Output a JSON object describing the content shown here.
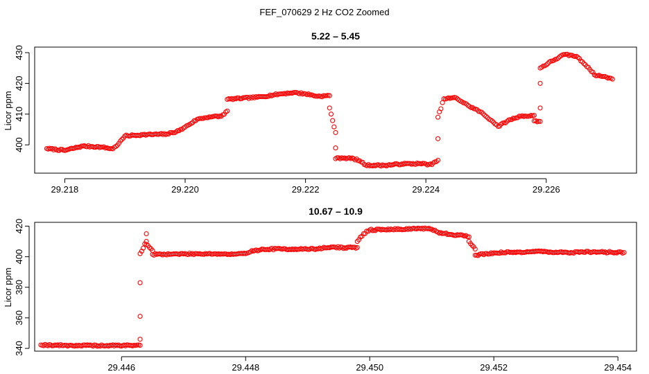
{
  "figure": {
    "title": "FEF_070629  2 Hz CO2 Zoomed",
    "point_color": "#ff0000"
  },
  "chart_data": [
    {
      "type": "scatter",
      "title": "5.22 – 5.45",
      "xlabel": "",
      "ylabel": "Licor ppm",
      "xlim": [
        29.2175,
        29.2275
      ],
      "ylim": [
        390.8,
        431.8
      ],
      "x_ticks": [
        29.218,
        29.22,
        29.222,
        29.224,
        29.226
      ],
      "x_tick_labels": [
        "29.218",
        "29.220",
        "29.222",
        "29.224",
        "29.226"
      ],
      "y_ticks": [
        400,
        410,
        420,
        430
      ],
      "y_tick_labels": [
        "400",
        "410",
        "420",
        "430"
      ],
      "grid": false,
      "x_range": [
        29.2177,
        29.2271
      ],
      "trace": [
        [
          29.2177,
          398.8
        ],
        [
          29.218,
          398.2
        ],
        [
          29.2183,
          399.6
        ],
        [
          29.2186,
          399.3
        ],
        [
          29.2188,
          398.7
        ],
        [
          29.2189,
          400.5
        ],
        [
          29.219,
          402.9
        ],
        [
          29.2193,
          403.3
        ],
        [
          29.2197,
          403.5
        ],
        [
          29.2199,
          404.6
        ],
        [
          29.22,
          405.8
        ],
        [
          29.2202,
          408.3
        ],
        [
          29.2204,
          409.1
        ],
        [
          29.2206,
          409.3
        ],
        [
          29.2207,
          411.0
        ],
        [
          29.2207,
          414.8
        ],
        [
          29.2212,
          415.5
        ],
        [
          29.2216,
          416.6
        ],
        [
          29.2218,
          417.0
        ],
        [
          29.222,
          416.6
        ],
        [
          29.2222,
          415.8
        ],
        [
          29.2224,
          416.0
        ],
        [
          29.2224,
          412.0
        ],
        [
          29.2225,
          404.0
        ],
        [
          29.2225,
          399.0
        ],
        [
          29.2225,
          395.5
        ],
        [
          29.2226,
          395.8
        ],
        [
          29.2228,
          395.5
        ],
        [
          29.2229,
          394.8
        ],
        [
          29.223,
          393.4
        ],
        [
          29.2233,
          393.3
        ],
        [
          29.2236,
          393.8
        ],
        [
          29.2239,
          393.9
        ],
        [
          29.2241,
          393.6
        ],
        [
          29.2242,
          395.0
        ],
        [
          29.2242,
          402.0
        ],
        [
          29.2242,
          409.0
        ],
        [
          29.2243,
          415.0
        ],
        [
          29.2245,
          415.3
        ],
        [
          29.2247,
          412.8
        ],
        [
          29.2249,
          410.8
        ],
        [
          29.2251,
          407.8
        ],
        [
          29.2252,
          406.0
        ],
        [
          29.2254,
          408.2
        ],
        [
          29.2256,
          409.5
        ],
        [
          29.2257,
          409.3
        ],
        [
          29.2258,
          409.6
        ],
        [
          29.2258,
          407.8
        ],
        [
          29.2259,
          407.6
        ],
        [
          29.2259,
          412.0
        ],
        [
          29.2259,
          420.0
        ],
        [
          29.2259,
          425.0
        ],
        [
          29.2261,
          427.3
        ],
        [
          29.2263,
          429.4
        ],
        [
          29.2265,
          428.8
        ],
        [
          29.2267,
          425.2
        ],
        [
          29.2268,
          422.8
        ],
        [
          29.227,
          422.0
        ],
        [
          29.2271,
          421.4
        ]
      ]
    },
    {
      "type": "scatter",
      "title": "10.67 – 10.9",
      "xlabel": "",
      "ylabel": "Licor ppm",
      "xlim": [
        29.4446,
        29.4543
      ],
      "ylim": [
        338.2,
        422.5
      ],
      "x_ticks": [
        29.446,
        29.448,
        29.45,
        29.452,
        29.454
      ],
      "x_tick_labels": [
        "29.446",
        "29.448",
        "29.450",
        "29.452",
        "29.454"
      ],
      "y_ticks": [
        340,
        360,
        380,
        400,
        420
      ],
      "y_tick_labels": [
        "340",
        "360",
        "380",
        "400",
        "420"
      ],
      "grid": false,
      "x_range": [
        29.4447,
        29.4541
      ],
      "trace": [
        [
          29.4447,
          342.3
        ],
        [
          29.4452,
          341.9
        ],
        [
          29.4457,
          341.8
        ],
        [
          29.4462,
          342.0
        ],
        [
          29.4463,
          342.0
        ],
        [
          29.4463,
          346.0
        ],
        [
          29.4463,
          361.0
        ],
        [
          29.4463,
          383.0
        ],
        [
          29.4463,
          402.0
        ],
        [
          29.4464,
          410.0
        ],
        [
          29.4464,
          415.0
        ],
        [
          29.4464,
          408.0
        ],
        [
          29.4465,
          404.0
        ],
        [
          29.4465,
          401.5
        ],
        [
          29.447,
          401.8
        ],
        [
          29.4474,
          402.0
        ],
        [
          29.4478,
          401.5
        ],
        [
          29.448,
          402.0
        ],
        [
          29.4481,
          404.0
        ],
        [
          29.4484,
          405.0
        ],
        [
          29.4488,
          405.0
        ],
        [
          29.4491,
          405.0
        ],
        [
          29.4494,
          406.3
        ],
        [
          29.4496,
          405.8
        ],
        [
          29.4498,
          406.0
        ],
        [
          29.4498,
          410.0
        ],
        [
          29.4499,
          415.0
        ],
        [
          29.45,
          417.5
        ],
        [
          29.4505,
          418.0
        ],
        [
          29.4508,
          418.5
        ],
        [
          29.451,
          418.0
        ],
        [
          29.4511,
          416.0
        ],
        [
          29.4513,
          414.5
        ],
        [
          29.4515,
          414.0
        ],
        [
          29.4516,
          413.0
        ],
        [
          29.4516,
          410.0
        ],
        [
          29.4517,
          405.0
        ],
        [
          29.4517,
          401.0
        ],
        [
          29.452,
          402.5
        ],
        [
          29.4524,
          403.0
        ],
        [
          29.4527,
          403.5
        ],
        [
          29.453,
          403.0
        ],
        [
          29.4532,
          402.5
        ],
        [
          29.4534,
          403.2
        ],
        [
          29.4537,
          403.0
        ],
        [
          29.4541,
          402.8
        ]
      ]
    }
  ]
}
